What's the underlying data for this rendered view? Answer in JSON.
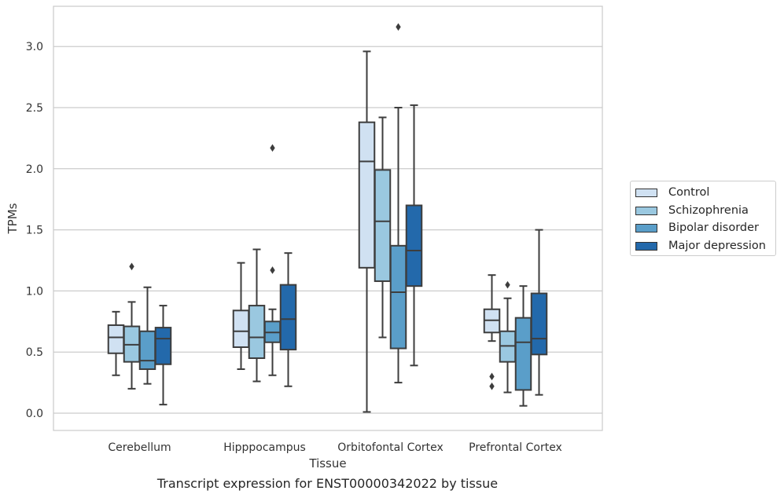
{
  "chart_data": {
    "type": "box",
    "xlabel": "Tissue",
    "ylabel": "TPMs",
    "caption": "Transcript expression for ENST00000342022 by tissue",
    "ylim": [
      -0.14,
      3.33
    ],
    "yticks": [
      0.0,
      0.5,
      1.0,
      1.5,
      2.0,
      2.5,
      3.0
    ],
    "ytick_labels": [
      "0.0",
      "0.5",
      "1.0",
      "1.5",
      "2.0",
      "2.5",
      "3.0"
    ],
    "grid": true,
    "legend_position": "right",
    "categories": [
      "Cerebellum",
      "Hipppocampus",
      "Orbitofontal Cortex",
      "Prefrontal Cortex"
    ],
    "series": [
      {
        "name": "Control",
        "color": "#d0e1f2",
        "boxes": [
          {
            "whislo": 0.31,
            "q1": 0.49,
            "med": 0.62,
            "q3": 0.72,
            "whishi": 0.83,
            "fliers": []
          },
          {
            "whislo": 0.36,
            "q1": 0.54,
            "med": 0.67,
            "q3": 0.84,
            "whishi": 1.23,
            "fliers": []
          },
          {
            "whislo": 0.01,
            "q1": 1.19,
            "med": 2.06,
            "q3": 2.38,
            "whishi": 2.96,
            "fliers": []
          },
          {
            "whislo": 0.59,
            "q1": 0.66,
            "med": 0.76,
            "q3": 0.85,
            "whishi": 1.13,
            "fliers": [
              0.22,
              0.3
            ]
          }
        ]
      },
      {
        "name": "Schizophrenia",
        "color": "#9ac8e0",
        "boxes": [
          {
            "whislo": 0.2,
            "q1": 0.42,
            "med": 0.56,
            "q3": 0.71,
            "whishi": 0.91,
            "fliers": [
              1.2
            ]
          },
          {
            "whislo": 0.26,
            "q1": 0.45,
            "med": 0.62,
            "q3": 0.88,
            "whishi": 1.34,
            "fliers": []
          },
          {
            "whislo": 0.62,
            "q1": 1.08,
            "med": 1.57,
            "q3": 1.99,
            "whishi": 2.42,
            "fliers": []
          },
          {
            "whislo": 0.17,
            "q1": 0.42,
            "med": 0.55,
            "q3": 0.67,
            "whishi": 0.94,
            "fliers": [
              1.05
            ]
          }
        ]
      },
      {
        "name": "Bipolar disorder",
        "color": "#5a9ec9",
        "boxes": [
          {
            "whislo": 0.24,
            "q1": 0.36,
            "med": 0.43,
            "q3": 0.67,
            "whishi": 1.03,
            "fliers": []
          },
          {
            "whislo": 0.31,
            "q1": 0.58,
            "med": 0.66,
            "q3": 0.75,
            "whishi": 0.85,
            "fliers": [
              1.17,
              2.17
            ]
          },
          {
            "whislo": 0.25,
            "q1": 0.53,
            "med": 0.99,
            "q3": 1.37,
            "whishi": 2.5,
            "fliers": [
              3.16
            ]
          },
          {
            "whislo": 0.06,
            "q1": 0.19,
            "med": 0.58,
            "q3": 0.78,
            "whishi": 1.04,
            "fliers": []
          }
        ]
      },
      {
        "name": "Major depression",
        "color": "#2369ab",
        "boxes": [
          {
            "whislo": 0.07,
            "q1": 0.4,
            "med": 0.61,
            "q3": 0.7,
            "whishi": 0.88,
            "fliers": []
          },
          {
            "whislo": 0.22,
            "q1": 0.52,
            "med": 0.77,
            "q3": 1.05,
            "whishi": 1.31,
            "fliers": []
          },
          {
            "whislo": 0.39,
            "q1": 1.04,
            "med": 1.33,
            "q3": 1.7,
            "whishi": 2.52,
            "fliers": []
          },
          {
            "whislo": 0.15,
            "q1": 0.48,
            "med": 0.61,
            "q3": 0.98,
            "whishi": 1.5,
            "fliers": []
          }
        ]
      }
    ]
  }
}
